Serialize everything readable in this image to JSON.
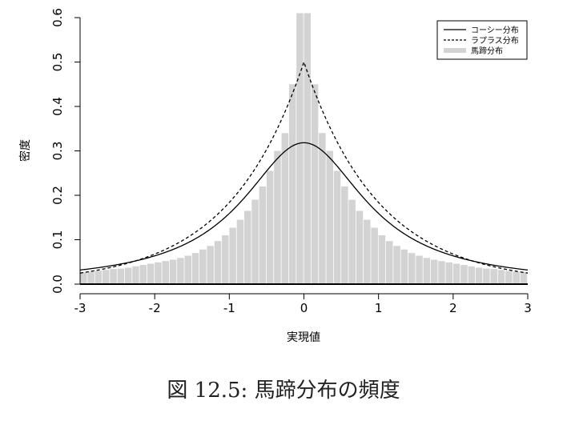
{
  "chart_data": {
    "type": "bar",
    "ylabel": "密度",
    "xlabel": "実現値",
    "xlim": [
      -3,
      3
    ],
    "ylim": [
      0,
      0.6
    ],
    "x_ticks": [
      "-3",
      "-2",
      "-1",
      "0",
      "1",
      "2",
      "3"
    ],
    "y_ticks": [
      "0.0",
      "0.1",
      "0.2",
      "0.3",
      "0.4",
      "0.5",
      "0.6"
    ],
    "legend": {
      "position": "top-right",
      "entries": [
        {
          "label": "コーシー分布",
          "style": "solid-line",
          "color": "#000000"
        },
        {
          "label": "ラプラス分布",
          "style": "dashed-line",
          "color": "#000000"
        },
        {
          "label": "馬蹄分布",
          "style": "thick-bar",
          "color": "#d3d3d3"
        }
      ]
    },
    "histogram": {
      "name": "馬蹄分布",
      "color": "#d3d3d3",
      "bin_width": 0.1,
      "bin_starts": [
        -3.0,
        -2.9,
        -2.8,
        -2.7,
        -2.6,
        -2.5,
        -2.4,
        -2.3,
        -2.2,
        -2.1,
        -2.0,
        -1.9,
        -1.8,
        -1.7,
        -1.6,
        -1.5,
        -1.4,
        -1.3,
        -1.2,
        -1.1,
        -1.0,
        -0.9,
        -0.8,
        -0.7,
        -0.6,
        -0.5,
        -0.4,
        -0.3,
        -0.2,
        -0.1,
        0.0,
        0.1,
        0.2,
        0.3,
        0.4,
        0.5,
        0.6,
        0.7,
        0.8,
        0.9,
        1.0,
        1.1,
        1.2,
        1.3,
        1.4,
        1.5,
        1.6,
        1.7,
        1.8,
        1.9,
        2.0,
        2.1,
        2.2,
        2.3,
        2.4,
        2.5,
        2.6,
        2.7,
        2.8,
        2.9
      ],
      "densities": [
        0.027,
        0.028,
        0.03,
        0.032,
        0.034,
        0.035,
        0.037,
        0.04,
        0.043,
        0.046,
        0.049,
        0.052,
        0.055,
        0.059,
        0.064,
        0.07,
        0.078,
        0.086,
        0.097,
        0.11,
        0.127,
        0.145,
        0.165,
        0.19,
        0.22,
        0.255,
        0.3,
        0.34,
        0.45,
        0.61,
        0.61,
        0.45,
        0.34,
        0.3,
        0.255,
        0.22,
        0.19,
        0.165,
        0.145,
        0.127,
        0.11,
        0.097,
        0.086,
        0.078,
        0.07,
        0.064,
        0.059,
        0.055,
        0.052,
        0.049,
        0.046,
        0.043,
        0.04,
        0.037,
        0.035,
        0.034,
        0.032,
        0.03,
        0.028,
        0.027
      ]
    },
    "curves": [
      {
        "name": "コーシー分布",
        "style": "solid",
        "color": "#000000",
        "function": "cauchy",
        "location": 0,
        "scale": 1
      },
      {
        "name": "ラプラス分布",
        "style": "dashed",
        "color": "#000000",
        "function": "laplace",
        "location": 0,
        "scale": 1
      }
    ],
    "grid": false
  },
  "caption": "図 12.5: 馬蹄分布の頻度"
}
